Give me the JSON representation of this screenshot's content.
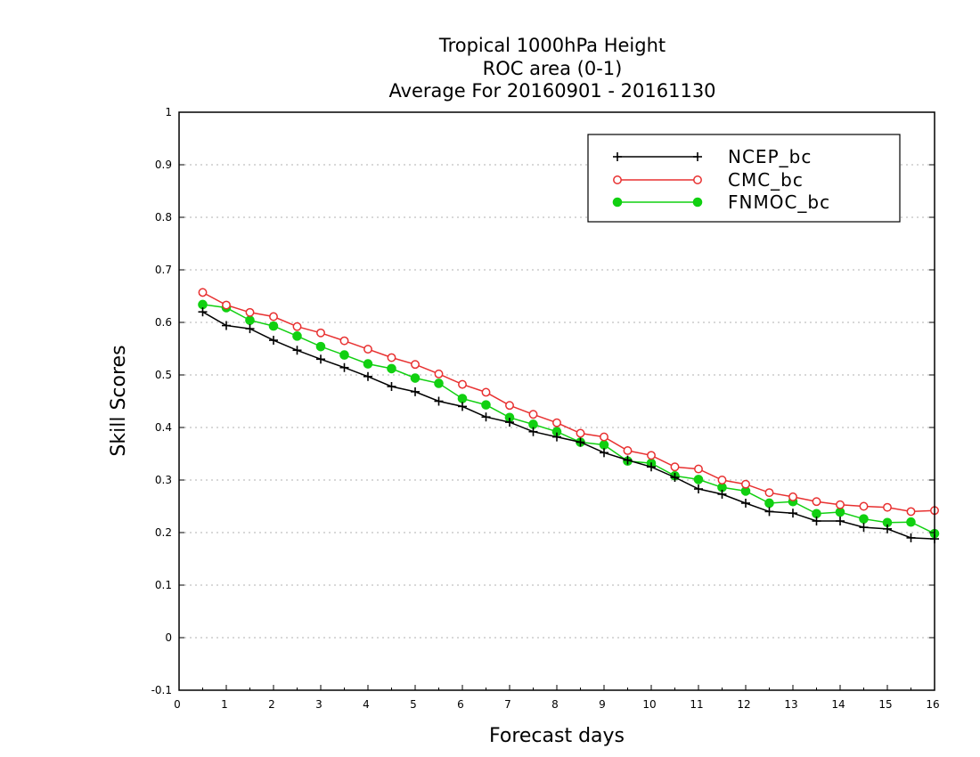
{
  "chart_data": {
    "type": "line",
    "title": [
      "Tropical 1000hPa Height",
      "ROC area (0-1)",
      "Average For 20160901 - 20161130"
    ],
    "xlabel": "Forecast days",
    "ylabel": "Skill Scores",
    "xlim": [
      0,
      16
    ],
    "ylim": [
      -0.1,
      1
    ],
    "x_ticks": [
      "0",
      "1",
      "2",
      "3",
      "4",
      "5",
      "6",
      "7",
      "8",
      "9",
      "10",
      "11",
      "12",
      "13",
      "14",
      "15",
      "16"
    ],
    "y_ticks": [
      "-0.1",
      "0",
      "0.1",
      "0.2",
      "0.3",
      "0.4",
      "0.5",
      "0.6",
      "0.7",
      "0.8",
      "0.9",
      "1"
    ],
    "grid": "horizontal dotted",
    "legend_position": "top-right",
    "x": [
      0.5,
      1,
      1.5,
      2,
      2.5,
      3,
      3.5,
      4,
      4.5,
      5,
      5.5,
      6,
      6.5,
      7,
      7.5,
      8,
      8.5,
      9,
      9.5,
      10,
      10.5,
      11,
      11.5,
      12,
      12.5,
      13,
      13.5,
      14,
      14.5,
      15,
      15.5,
      16
    ],
    "series": [
      {
        "name": "NCEP_bc",
        "color": "#000000",
        "marker": "plus",
        "values": [
          0.62,
          0.594,
          0.588,
          0.566,
          0.547,
          0.53,
          0.514,
          0.497,
          0.478,
          0.468,
          0.45,
          0.44,
          0.42,
          0.41,
          0.392,
          0.382,
          0.372,
          0.352,
          0.338,
          0.325,
          0.305,
          0.283,
          0.273,
          0.256,
          0.24,
          0.237,
          0.222,
          0.222,
          0.21,
          0.207,
          0.19,
          0.188
        ]
      },
      {
        "name": "CMC_bc",
        "color": "#e83030",
        "marker": "open-circle",
        "values": [
          0.657,
          0.633,
          0.619,
          0.611,
          0.592,
          0.58,
          0.565,
          0.549,
          0.533,
          0.52,
          0.502,
          0.482,
          0.467,
          0.442,
          0.425,
          0.409,
          0.389,
          0.382,
          0.356,
          0.347,
          0.325,
          0.321,
          0.3,
          0.292,
          0.276,
          0.268,
          0.259,
          0.253,
          0.25,
          0.248,
          0.24,
          0.242
        ]
      },
      {
        "name": "FNMOC_bc",
        "color": "#11d011",
        "marker": "filled-circle",
        "values": [
          0.634,
          0.628,
          0.604,
          0.593,
          0.574,
          0.554,
          0.538,
          0.521,
          0.512,
          0.494,
          0.484,
          0.455,
          0.443,
          0.419,
          0.406,
          0.392,
          0.372,
          0.367,
          0.336,
          0.332,
          0.308,
          0.301,
          0.286,
          0.279,
          0.256,
          0.259,
          0.236,
          0.239,
          0.226,
          0.219,
          0.22,
          0.198
        ]
      }
    ]
  }
}
